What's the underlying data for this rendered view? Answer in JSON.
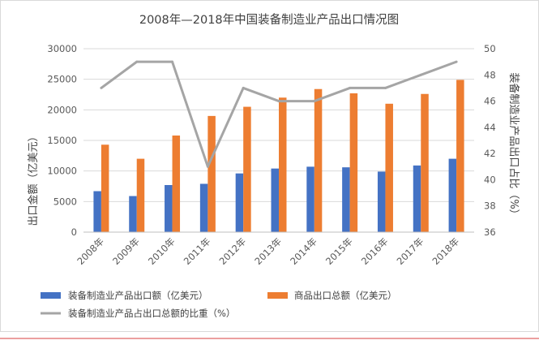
{
  "chart_data": {
    "type": "bar",
    "title": "2008年—2018年中国装备制造业产品出口情况图",
    "categories": [
      "2008年",
      "2009年",
      "2010年",
      "2011年",
      "2012年",
      "2013年",
      "2014年",
      "2015年",
      "2016年",
      "2017年",
      "2018年"
    ],
    "ylabel": "出口金额（亿美元）",
    "y2label": "装备制造业产品出口占比（%）",
    "ylim": [
      0,
      30000
    ],
    "y2lim": [
      36,
      50
    ],
    "yticks": [
      "0",
      "5000",
      "10000",
      "15000",
      "20000",
      "25000",
      "30000"
    ],
    "y2ticks": [
      "36",
      "38",
      "40",
      "42",
      "44",
      "46",
      "48",
      "50"
    ],
    "grid": true,
    "legend_position": "bottom",
    "series": [
      {
        "name": "装备制造业产品出口额（亿美元）",
        "type": "bar",
        "color": "#4472C4",
        "values": [
          6700,
          5900,
          7700,
          7900,
          9600,
          10400,
          10700,
          10600,
          9900,
          10900,
          12000
        ]
      },
      {
        "name": "商品出口总额（亿美元）",
        "type": "bar",
        "color": "#ED7D31",
        "values": [
          14300,
          12000,
          15800,
          19000,
          20500,
          22000,
          23400,
          22700,
          21000,
          22600,
          24900
        ]
      },
      {
        "name": "装备制造业产品占出口总额的比重（%）",
        "type": "line",
        "axis": "right",
        "color": "#A5A5A5",
        "values": [
          47,
          49,
          49,
          41,
          47,
          46,
          46,
          47,
          47,
          48,
          49
        ]
      }
    ]
  }
}
